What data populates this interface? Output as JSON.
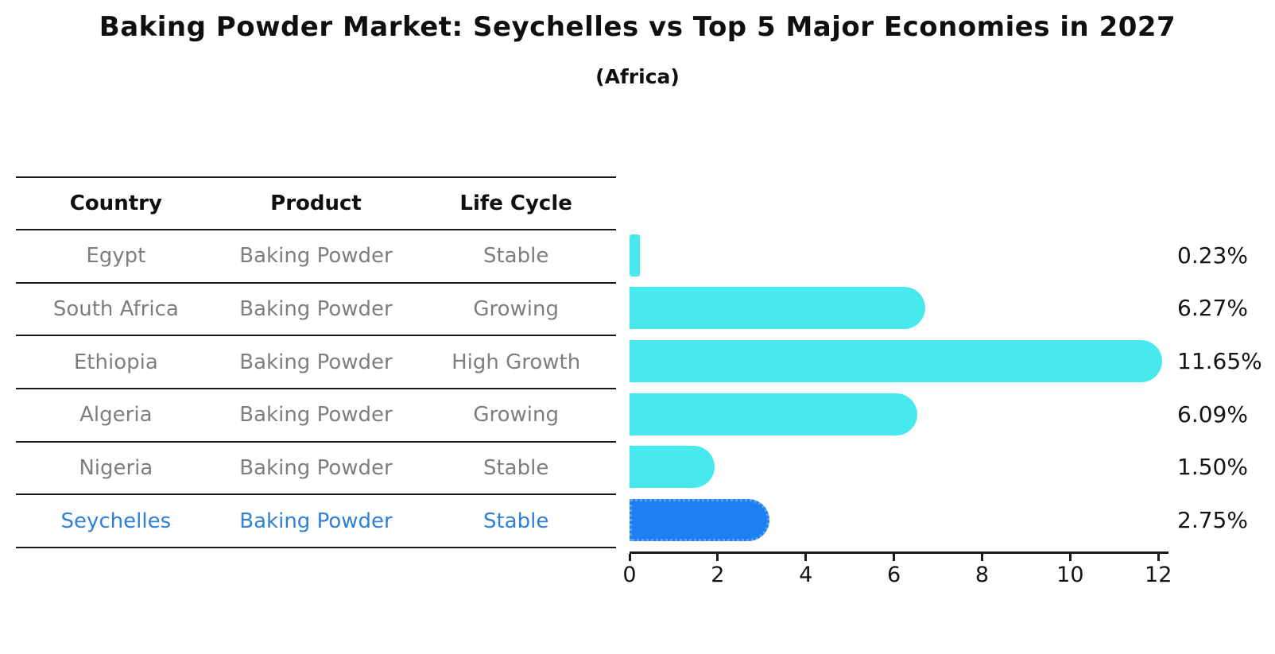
{
  "title": "Baking Powder Market: Seychelles vs Top 5 Major Economies in 2027",
  "subtitle": "(Africa)",
  "table": {
    "headers": [
      "Country",
      "Product",
      "Life Cycle"
    ],
    "rows": [
      {
        "country": "Egypt",
        "product": "Baking Powder",
        "life_cycle": "Stable"
      },
      {
        "country": "South Africa",
        "product": "Baking Powder",
        "life_cycle": "Growing"
      },
      {
        "country": "Ethiopia",
        "product": "Baking Powder",
        "life_cycle": "High Growth"
      },
      {
        "country": "Algeria",
        "product": "Baking Powder",
        "life_cycle": "Growing"
      },
      {
        "country": "Nigeria",
        "product": "Baking Powder",
        "life_cycle": "Stable"
      },
      {
        "country": "Seychelles",
        "product": "Baking Powder",
        "life_cycle": "Stable"
      }
    ]
  },
  "chart_data": {
    "type": "bar",
    "orientation": "horizontal",
    "title": "Baking Powder Market: Seychelles vs Top 5 Major Economies in 2027",
    "subtitle": "(Africa)",
    "categories": [
      "Egypt",
      "South Africa",
      "Ethiopia",
      "Algeria",
      "Nigeria",
      "Seychelles"
    ],
    "values": [
      0.23,
      6.27,
      11.65,
      6.09,
      1.5,
      2.75
    ],
    "value_labels": [
      "0.23%",
      "6.27%",
      "11.65%",
      "6.09%",
      "1.50%",
      "2.75%"
    ],
    "xlabel": "",
    "ylabel": "",
    "xlim": [
      0,
      12.23
    ],
    "xticks": [
      0,
      2,
      4,
      6,
      8,
      10,
      12
    ],
    "grid": false,
    "legend": "none",
    "bar_color": "#48E9EC",
    "highlight_index": 5,
    "highlight_color": "#1E80F0",
    "highlight_edge_color": "#5FA2F2",
    "highlight_text_color": "#2E80D8"
  }
}
